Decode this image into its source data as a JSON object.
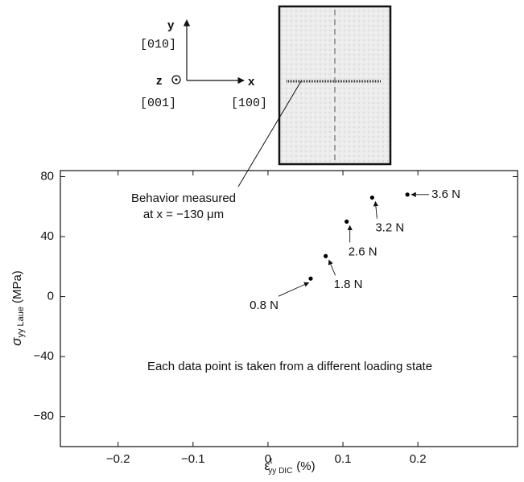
{
  "chart_data": {
    "type": "scatter",
    "x": [
      0.057,
      0.077,
      0.105,
      0.139,
      0.186
    ],
    "values": [
      12,
      27,
      50,
      66,
      68
    ],
    "point_labels": [
      "0.8 N",
      "1.8 N",
      "2.6 N",
      "3.2 N",
      "3.6 N"
    ],
    "color": "#000000",
    "xlim": [
      -0.277,
      0.333
    ],
    "ylim": [
      -100,
      84
    ],
    "xticks": [
      {
        "value": -0.2,
        "label": "−0.2"
      },
      {
        "value": -0.1,
        "label": "−0.1"
      },
      0,
      0.1,
      0.2
    ],
    "yticks": [
      {
        "value": -80,
        "label": "−80"
      },
      {
        "value": -40,
        "label": "−40"
      },
      0,
      40,
      80
    ],
    "ylabel": {
      "symbol": "σ",
      "sub": "yy Laue",
      "unit": "(MPa)"
    },
    "xlabel": {
      "symbol": "ε",
      "sup": "t",
      "sub": "yy DIC",
      "unit": "(%)"
    },
    "annotations": [
      "Behavior measured",
      "at x = −130 μm",
      "Each data point is taken from a different loading state"
    ],
    "axes_diagram": {
      "y": "y",
      "y_dir": "[010]",
      "z": "z",
      "z_dir": "[001]",
      "x": "x",
      "x_dir": "[100]"
    }
  }
}
